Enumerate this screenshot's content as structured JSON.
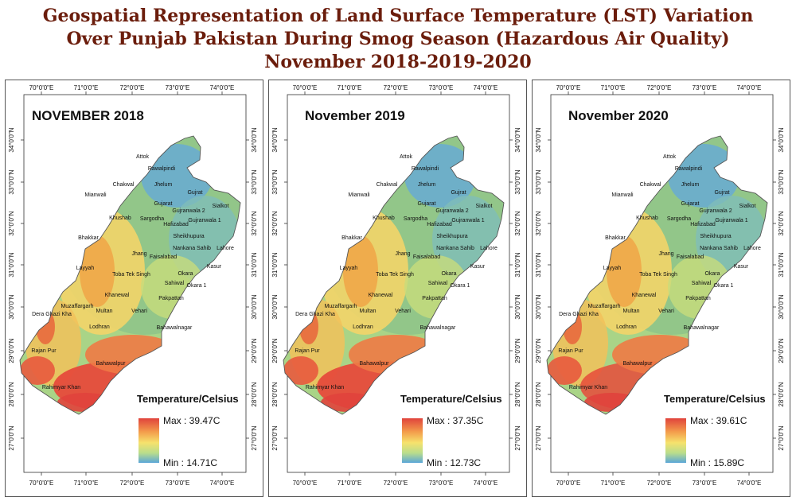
{
  "title": {
    "line1": "Geospatial Representation of Land Surface Temperature (LST) Variation",
    "line2": "Over Punjab Pakistan During Smog Season (Hazardous Air Quality)",
    "line3": "November 2018-2019-2020"
  },
  "longitude_ticks": [
    "70°0'0\"E",
    "71°0'0\"E",
    "72°0'0\"E",
    "73°0'0\"E",
    "74°0'0\"E"
  ],
  "latitude_ticks": [
    "34°0'0\"N",
    "33°0'0\"N",
    "32°0'0\"N",
    "31°0'0\"N",
    "30°0'0\"N",
    "29°0'0\"N",
    "28°0'0\"N",
    "27°0'0\"N"
  ],
  "cities": [
    "Attok",
    "Rawalpindi",
    "Chakwal",
    "Jhelum",
    "Gujrat",
    "Mianwali",
    "Khushab",
    "Gujarat",
    "Gujranwala 2",
    "Sialkot",
    "Sargodha",
    "Hafizabad",
    "Gujranwala 1",
    "Bhakkar",
    "Sheikhupura",
    "Jhang",
    "Nankana Sahib",
    "Lahore",
    "Faisalabad",
    "Layyah",
    "Kasur",
    "Toba Tek Singh",
    "Okara",
    "Sahiwal",
    "Okara 1",
    "Khanewal",
    "Muzaffargarh",
    "Pakpattan",
    "Dera Ghazi Kha",
    "Multan",
    "Vehari",
    "Lodhran",
    "Bahawalnagar",
    "Rajan Pur",
    "Bahawalpur",
    "Rahimyar Khan"
  ],
  "legend_title": "Temperature/Celsius",
  "panels": [
    {
      "label": "NOVEMBER 2018",
      "max": "Max : 39.47C",
      "min": "Min : 14.71C"
    },
    {
      "label": "November 2019",
      "max": "Max : 37.35C",
      "min": "Min : 12.73C"
    },
    {
      "label": "November 2020",
      "max": "Max : 39.61C",
      "min": "Min : 15.89C"
    }
  ],
  "colors": {
    "title": "#6b1d0c",
    "hot": "#e0433c",
    "warm": "#f6e26d",
    "cool": "#5ba6d8"
  }
}
